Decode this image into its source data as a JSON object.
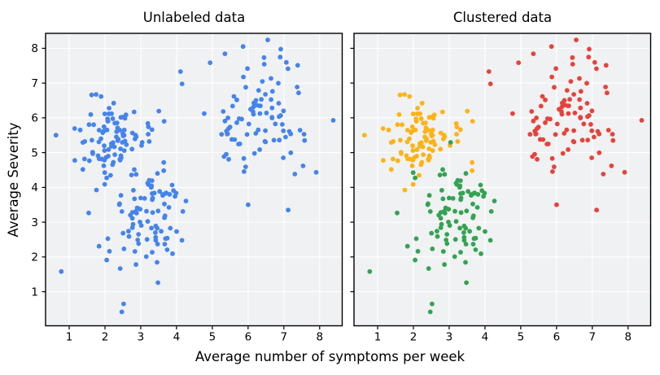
{
  "figure": {
    "xlabel": "Average number of symptoms per week",
    "ylabel": "Average Severity",
    "background": "#ffffff"
  },
  "chart_data": {
    "type": "scatter",
    "panels": [
      {
        "title": "Unlabeled data",
        "coloring": "single",
        "color": "#4484EC",
        "show_y_tick_labels": true
      },
      {
        "title": "Clustered data",
        "coloring": "by_cluster",
        "show_y_tick_labels": false
      }
    ],
    "axes": {
      "xlabel": "Average number of symptoms per week",
      "ylabel": "Average Severity",
      "xlim": [
        0.34,
        8.63
      ],
      "ylim": [
        0.02,
        8.43
      ],
      "xticks": [
        1,
        2,
        3,
        4,
        5,
        6,
        7,
        8
      ],
      "yticks": [
        1,
        2,
        3,
        4,
        5,
        6,
        7,
        8
      ],
      "grid": true,
      "legend": "none",
      "axes_background": "#f0f1f3",
      "grid_color": "#ffffff",
      "spine_color": "#000000",
      "tick_color": "#000000",
      "text_color": "#000000"
    },
    "marker": {
      "radius": 2.9,
      "shape": "circle"
    },
    "generator": {
      "seed": 13,
      "note": "both panels plot the identical ~300 points; left panel all blue, right panel colored by cluster",
      "clusters": [
        {
          "name": "cluster-yellow",
          "color": "#FCB316",
          "n": 95,
          "center": [
            2.05,
            5.45
          ],
          "std": [
            0.62,
            0.55
          ]
        },
        {
          "name": "cluster-green",
          "color": "#33A352",
          "n": 93,
          "center": [
            3.15,
            3.15
          ],
          "std": [
            0.6,
            0.8
          ]
        },
        {
          "name": "cluster-red",
          "color": "#E5433A",
          "n": 92,
          "center": [
            6.15,
            6.0
          ],
          "std": [
            0.78,
            0.85
          ]
        }
      ],
      "clamp": {
        "x": [
          0.45,
          8.55
        ],
        "y": [
          0.15,
          8.35
        ]
      }
    },
    "landmark_points": [
      {
        "x": 0.63,
        "y": 5.5,
        "cluster": 0
      },
      {
        "x": 0.78,
        "y": 1.58,
        "cluster": 1
      },
      {
        "x": 2.47,
        "y": 0.42,
        "cluster": 1
      },
      {
        "x": 2.52,
        "y": 0.65,
        "cluster": 1
      },
      {
        "x": 8.38,
        "y": 5.93,
        "cluster": 2
      },
      {
        "x": 6.55,
        "y": 8.24,
        "cluster": 2
      },
      {
        "x": 5.86,
        "y": 8.05,
        "cluster": 2
      },
      {
        "x": 7.12,
        "y": 3.35,
        "cluster": 2
      },
      {
        "x": 6.0,
        "y": 3.5,
        "cluster": 2
      },
      {
        "x": 4.11,
        "y": 7.33,
        "cluster": 2
      }
    ]
  }
}
